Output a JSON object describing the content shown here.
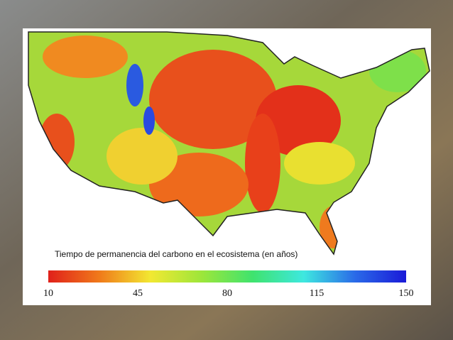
{
  "map": {
    "caption": "Tiempo de permanencia del carbono en el ecosistema (en años)",
    "colorbar": {
      "min": 10,
      "max": 150,
      "ticks": [
        10,
        45,
        80,
        115,
        150
      ],
      "colors": [
        "#e0201a",
        "#f07a1a",
        "#f2e832",
        "#9de63a",
        "#3fe36e",
        "#3ee8e0",
        "#2a6ae8",
        "#1a1ad8"
      ]
    }
  }
}
